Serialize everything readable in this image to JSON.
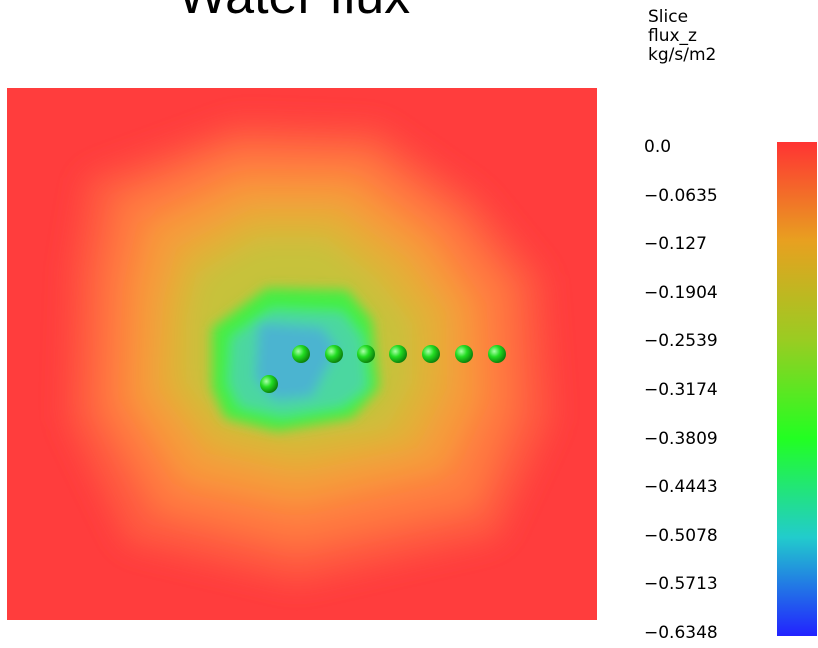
{
  "title": "Water flux",
  "legend": {
    "header_line1": "Slice",
    "header_line2": "flux_z",
    "header_line3": "kg/s/m2",
    "ticks": [
      "0.0",
      "−0.0635",
      "−0.127",
      "−0.1904",
      "−0.2539",
      "−0.3174",
      "−0.3809",
      "−0.4443",
      "−0.5078",
      "−0.5713",
      "−0.6348"
    ],
    "range": [
      0.0,
      -0.6348
    ],
    "colors": [
      "#ff3333",
      "#e8a020",
      "#9acc22",
      "#22ff22",
      "#22cccc",
      "#2222ff"
    ]
  },
  "scene": {
    "background_color": "#ff3d3d",
    "markers_count": 8,
    "marker_color": "#22dd22",
    "well_color": "#b8742a"
  }
}
